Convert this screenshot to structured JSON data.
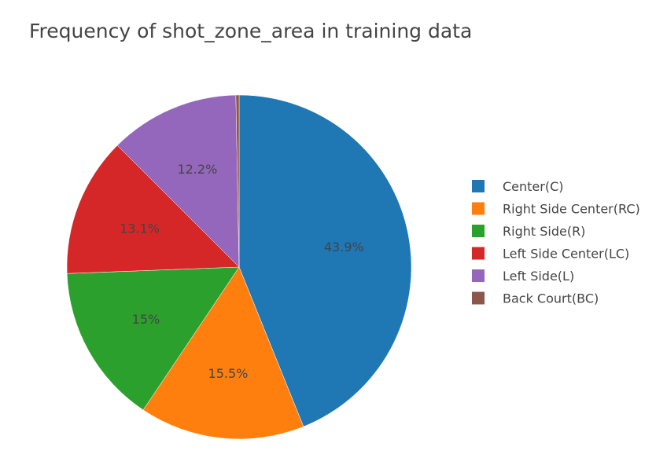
{
  "chart_data": {
    "type": "pie",
    "title": "Frequency of shot_zone_area in training data",
    "legend_position": "right",
    "slices": [
      {
        "label": "Center(C)",
        "percent": 43.9,
        "text": "43.9%",
        "color": "#1f77b4"
      },
      {
        "label": "Right Side Center(RC)",
        "percent": 15.5,
        "text": "15.5%",
        "color": "#ff7f0e"
      },
      {
        "label": "Right Side(R)",
        "percent": 15.0,
        "text": "15%",
        "color": "#2ca02c"
      },
      {
        "label": "Left Side Center(LC)",
        "percent": 13.1,
        "text": "13.1%",
        "color": "#d62728"
      },
      {
        "label": "Left Side(L)",
        "percent": 12.2,
        "text": "12.2%",
        "color": "#9467bd"
      },
      {
        "label": "Back Court(BC)",
        "percent": 0.3,
        "text": "",
        "color": "#8c564b"
      }
    ]
  }
}
